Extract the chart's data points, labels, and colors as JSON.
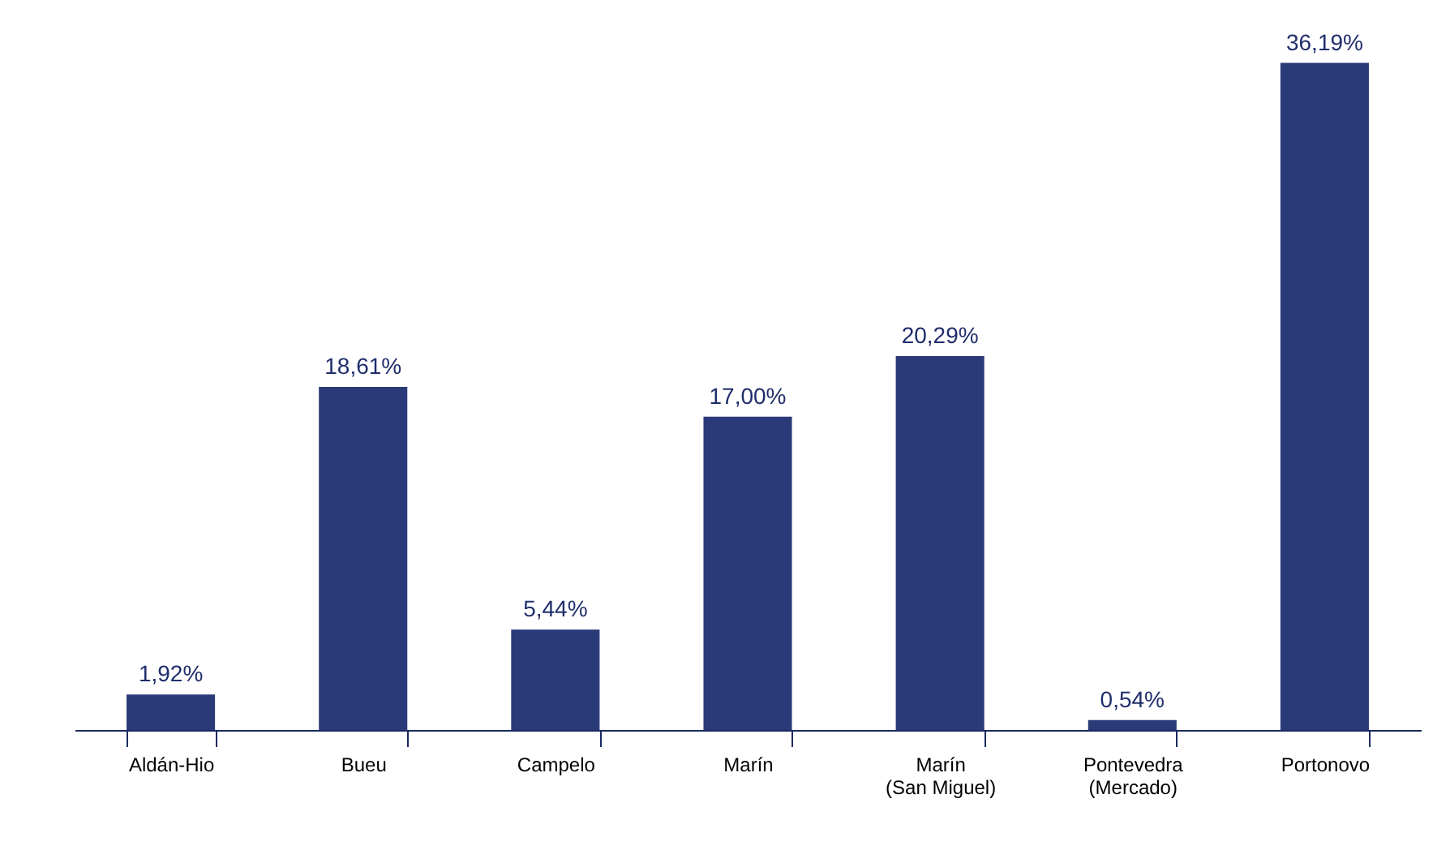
{
  "chart_data": {
    "type": "bar",
    "categories": [
      "Aldán-Hio",
      "Bueu",
      "Campelo",
      "Marín",
      "Marín\n(San Miguel)",
      "Pontevedra\n(Mercado)",
      "Portonovo"
    ],
    "values": [
      1.92,
      18.61,
      5.44,
      17.0,
      20.29,
      0.54,
      36.19
    ],
    "value_labels": [
      "1,92%",
      "18,61%",
      "5,44%",
      "17,00%",
      "20,29%",
      "0,54%",
      "36,19%"
    ],
    "color": "#2a3a78"
  }
}
